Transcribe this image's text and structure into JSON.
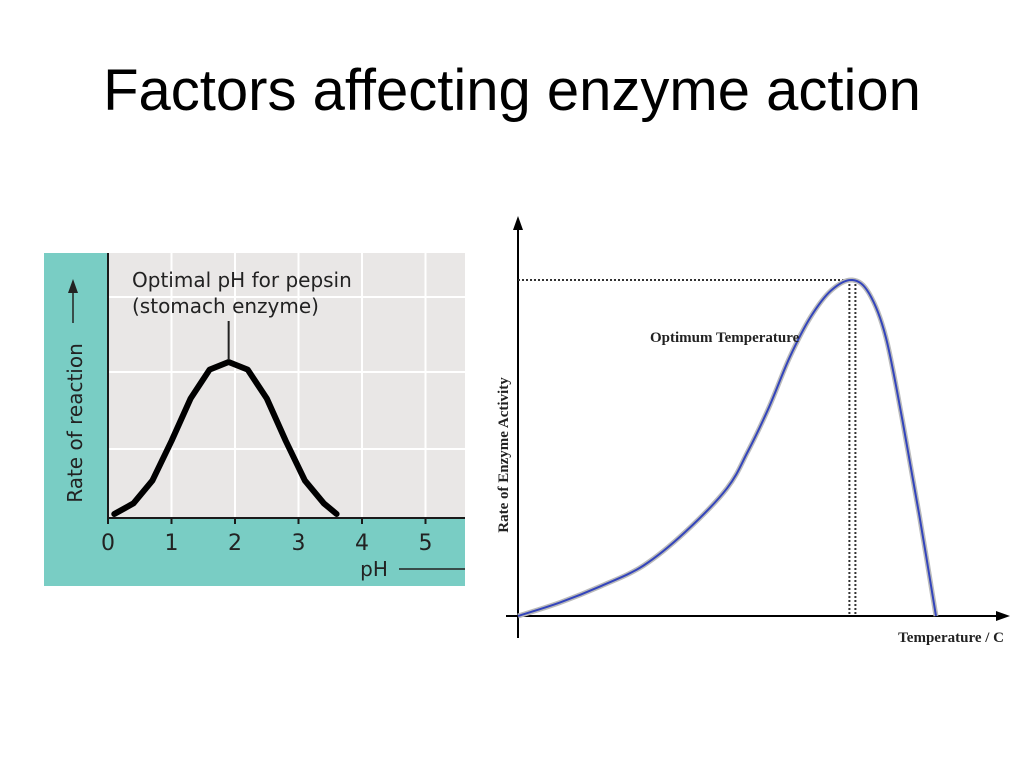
{
  "slide": {
    "title": "Factors affecting enzyme action"
  },
  "colors": {
    "panel": "#79cdc4",
    "plot_bg": "#e9e7e6",
    "ph_curve": "#000000",
    "temp_curve": "#3344bb"
  },
  "chart_data": [
    {
      "type": "line",
      "xlabel": "pH",
      "ylabel": "Rate of reaction",
      "x_ticks": [
        "0",
        "1",
        "2",
        "3",
        "4",
        "5"
      ],
      "xlim": [
        0,
        5.6
      ],
      "grid": true,
      "annotation": {
        "line1": "Optimal pH for pepsin",
        "line2": "(stomach enzyme)",
        "x": 1.9
      },
      "series": [
        {
          "x": [
            0.1,
            0.4,
            0.7,
            1.0,
            1.3,
            1.6,
            1.9,
            2.2,
            2.5,
            2.8,
            3.1,
            3.4,
            3.6
          ],
          "y": [
            0.0,
            0.07,
            0.22,
            0.48,
            0.76,
            0.95,
            1.0,
            0.95,
            0.76,
            0.48,
            0.22,
            0.07,
            0.0
          ]
        }
      ]
    },
    {
      "type": "line",
      "xlabel": "Temperature / C",
      "ylabel": "Rate of Enzyme Activity",
      "annotation": "Optimum Temperature",
      "optimum_x": 0.8,
      "grid": false,
      "series": [
        {
          "x": [
            0.0,
            0.1,
            0.2,
            0.3,
            0.4,
            0.5,
            0.55,
            0.6,
            0.65,
            0.7,
            0.75,
            0.8,
            0.84,
            0.88,
            0.92,
            0.96,
            1.0
          ],
          "y": [
            0.0,
            0.04,
            0.09,
            0.15,
            0.25,
            0.38,
            0.49,
            0.62,
            0.77,
            0.89,
            0.97,
            1.0,
            0.96,
            0.83,
            0.58,
            0.3,
            0.0
          ]
        }
      ]
    }
  ]
}
